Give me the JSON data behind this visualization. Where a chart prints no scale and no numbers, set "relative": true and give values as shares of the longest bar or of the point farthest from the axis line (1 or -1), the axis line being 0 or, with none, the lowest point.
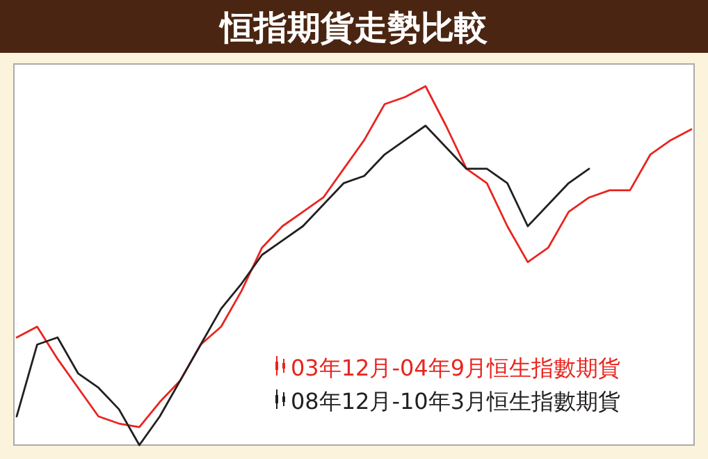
{
  "chart_data": {
    "type": "line",
    "title": "恒指期貨走勢比較",
    "relative": true,
    "legend": "bottom right",
    "categories": [
      null,
      null,
      null,
      null,
      null,
      null,
      null,
      null,
      null,
      null,
      null,
      null,
      null,
      null,
      null,
      null,
      null,
      null,
      null,
      null,
      null,
      null,
      null,
      null,
      null,
      null,
      null,
      null,
      null,
      null,
      null,
      null,
      null,
      null
    ],
    "series": [
      {
        "name": "03年12月-04年9月恒生指數期貨",
        "color": "#e8251f",
        "values": [
          0.3,
          0.33,
          0.24,
          0.16,
          0.08,
          0.06,
          0.05,
          0.12,
          0.18,
          0.28,
          0.33,
          0.43,
          0.55,
          0.61,
          0.65,
          0.69,
          0.77,
          0.85,
          0.95,
          0.97,
          1.0,
          0.89,
          0.77,
          0.73,
          0.61,
          0.51,
          0.55,
          0.65,
          0.69,
          0.71,
          0.71,
          0.81,
          0.85,
          0.88
        ]
      },
      {
        "name": "08年12月-10年3月恒生指數期貨",
        "color": "#231f20",
        "values": [
          0.08,
          0.28,
          0.3,
          0.2,
          0.16,
          0.1,
          0,
          0.08,
          0.18,
          0.28,
          0.38,
          0.45,
          0.53,
          0.57,
          0.61,
          0.67,
          0.73,
          0.75,
          0.81,
          0.85,
          0.89,
          0.83,
          0.77,
          0.77,
          0.73,
          0.61,
          0.67,
          0.73,
          0.77,
          null,
          null,
          null,
          null,
          null
        ]
      }
    ]
  }
}
